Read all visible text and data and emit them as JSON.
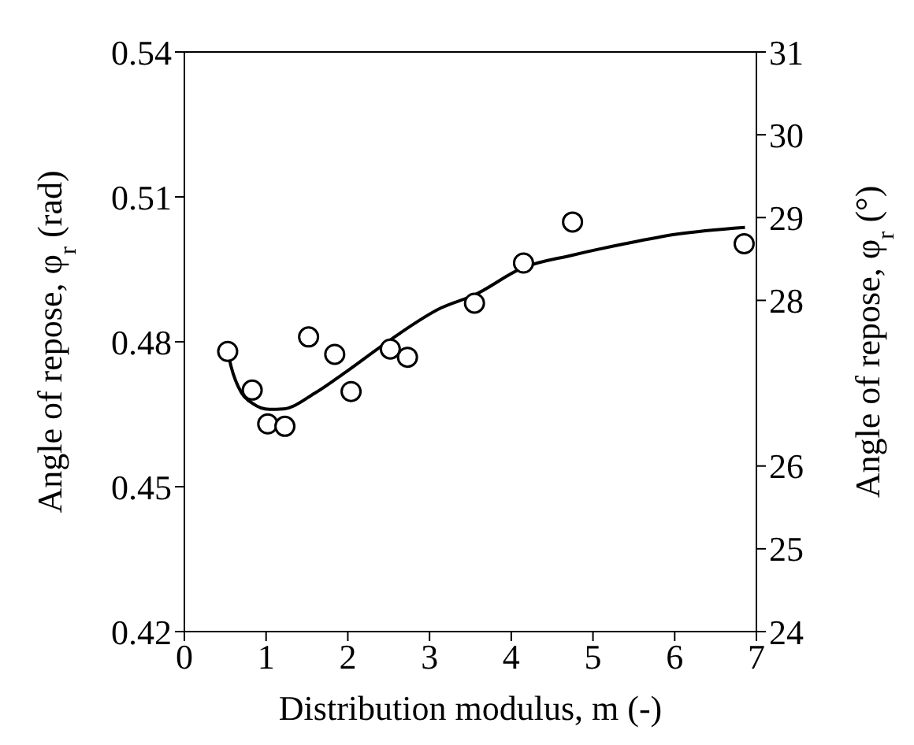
{
  "chart_data": {
    "type": "scatter",
    "xlabel": "Distribution modulus, m (-)",
    "ylabel": "Angle of repose, φ$_{r}$ (rad)",
    "y2label": "Angle of repose, φ$_{r}$ (°)",
    "xlim": [
      0,
      7
    ],
    "xticks": [
      0,
      1,
      2,
      3,
      4,
      5,
      6,
      7
    ],
    "ylim": [
      0.42,
      0.54
    ],
    "yticks": [
      0.42,
      0.45,
      0.48,
      0.51,
      0.54
    ],
    "y2lim": [
      24,
      31
    ],
    "y2ticks": [
      24,
      25,
      26,
      28,
      29,
      30,
      31
    ],
    "marker": "circle",
    "series": [
      {
        "color": "#000000",
        "x": [
          0.53,
          0.83,
          1.02,
          1.23,
          1.52,
          1.84,
          2.04,
          2.52,
          2.73,
          3.55,
          4.15,
          4.75,
          6.85
        ],
        "values": [
          0.478,
          0.47,
          0.463,
          0.4625,
          0.481,
          0.4774,
          0.4697,
          0.4785,
          0.4768,
          0.488,
          0.4963,
          0.5048,
          0.5003
        ]
      },
      {
        "type": "line",
        "color": "#000000",
        "marker": "none",
        "line_style": "solid",
        "x": [
          0.53,
          0.57,
          0.7,
          0.83,
          1.04,
          1.21,
          1.6,
          1.98,
          2.52,
          3.14,
          3.55,
          4.14,
          4.74,
          5.39,
          6.03,
          6.86
        ],
        "values": [
          0.478,
          0.475,
          0.4694,
          0.4673,
          0.466,
          0.4661,
          0.4694,
          0.4738,
          0.4804,
          0.487,
          0.4897,
          0.4953,
          0.4979,
          0.5003,
          0.5023,
          0.5037
        ]
      }
    ]
  }
}
